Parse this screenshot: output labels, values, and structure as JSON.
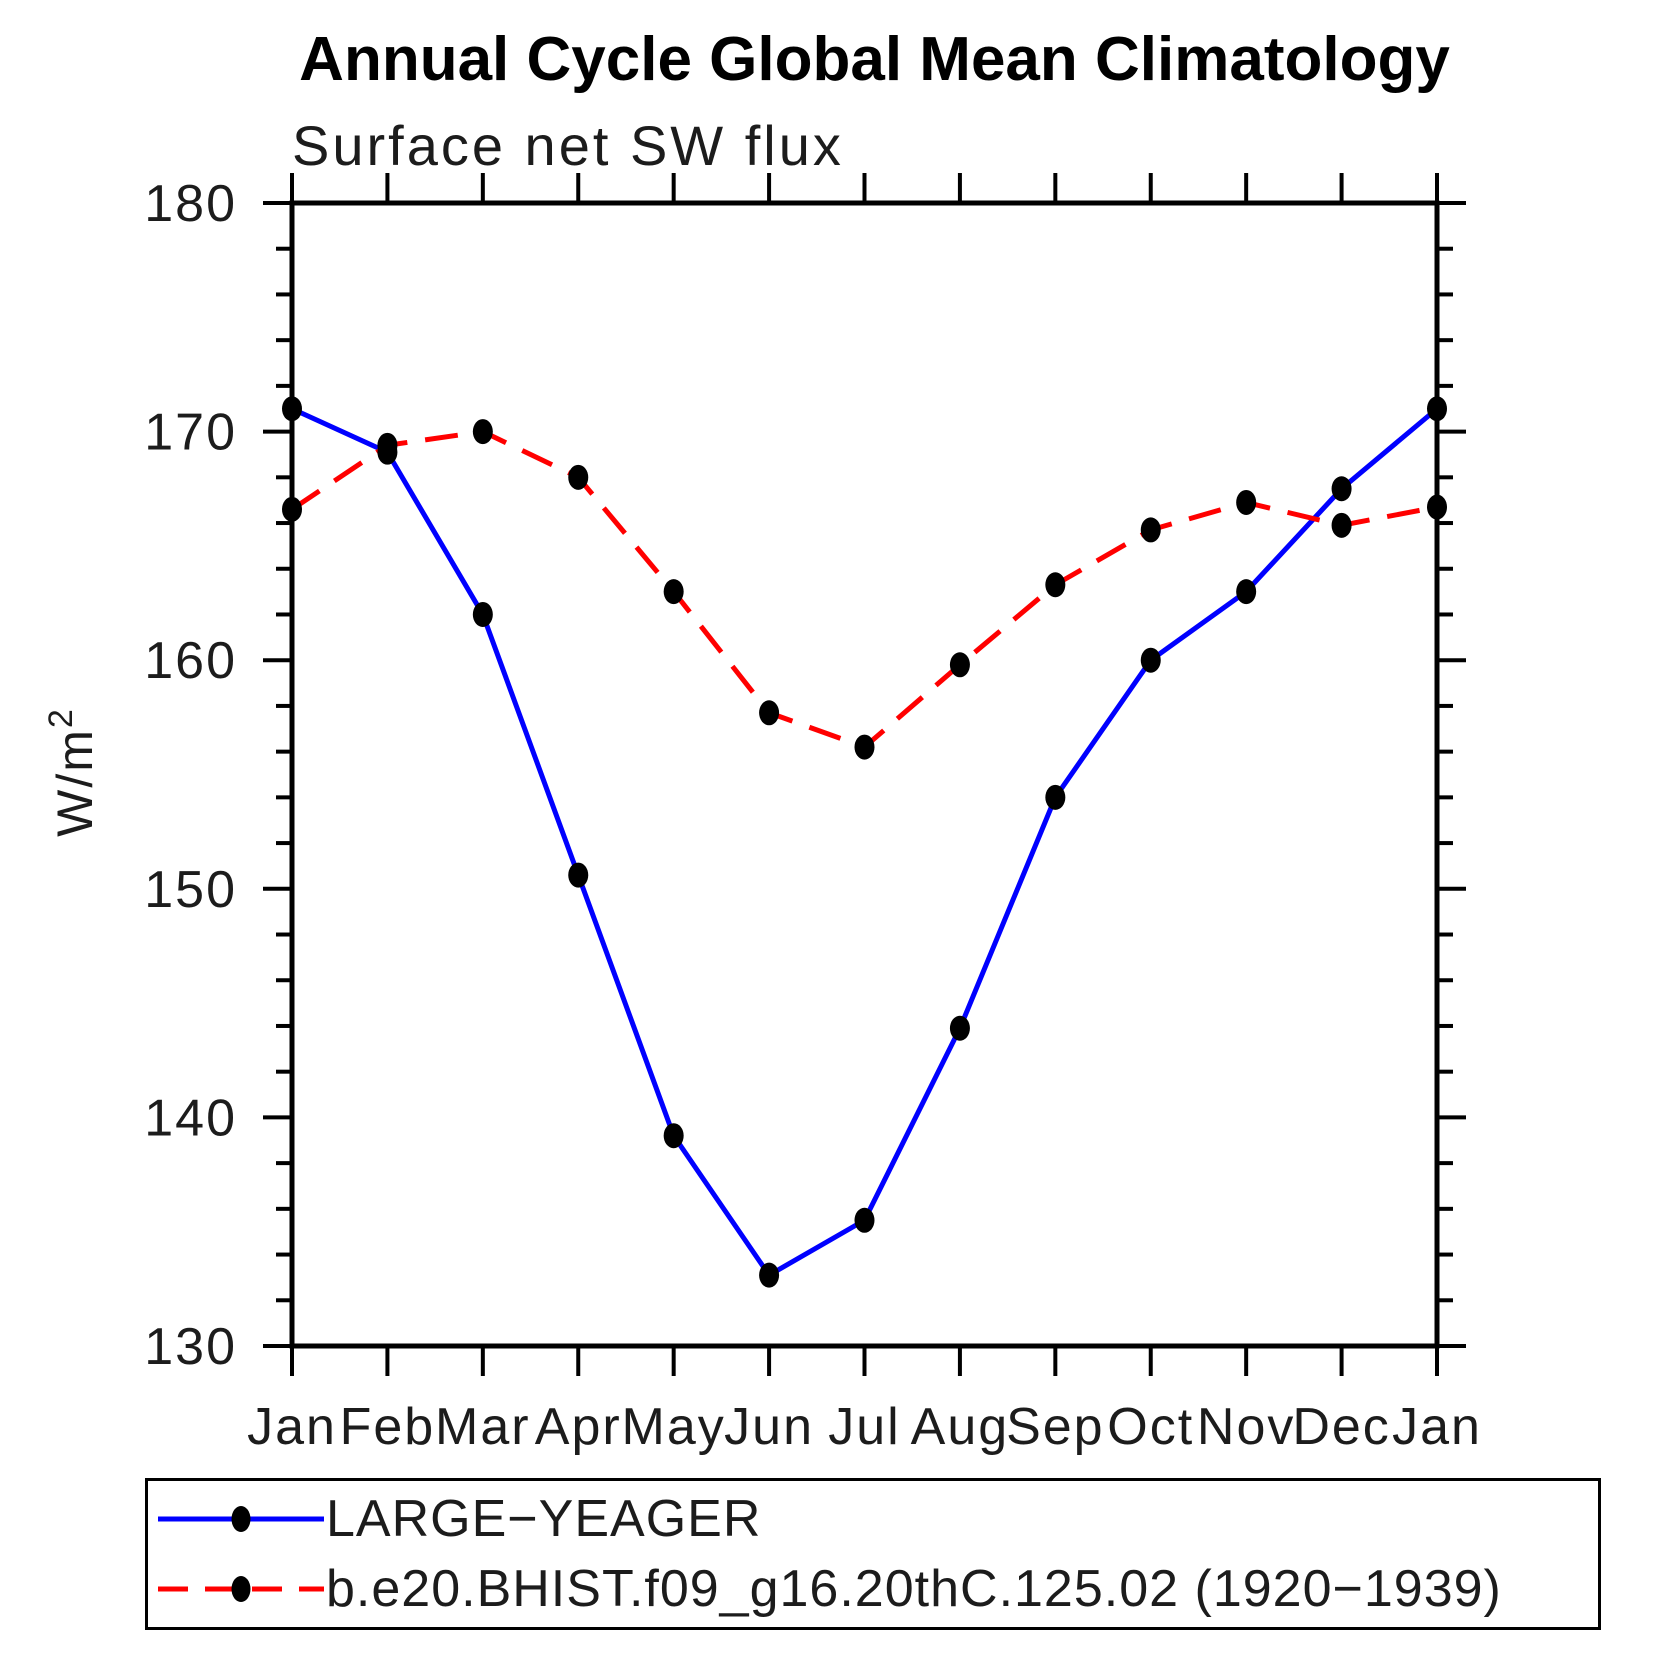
{
  "title": "Annual Cycle Global Mean Climatology",
  "subtitle": "Surface net SW flux",
  "ylabel_base": "W/m",
  "ylabel_exponent": "2",
  "colors": {
    "background": "#ffffff",
    "axis": "#000000",
    "text": "#1c1c1c",
    "marker": "#000000",
    "series1": "#0000ff",
    "series2": "#ff0000"
  },
  "chart_data": {
    "type": "line",
    "categories": [
      "Jan",
      "Feb",
      "Mar",
      "Apr",
      "May",
      "Jun",
      "Jul",
      "Aug",
      "Sep",
      "Oct",
      "Nov",
      "Dec",
      "Jan"
    ],
    "series": [
      {
        "name": "LARGE−YEAGER",
        "color": "#0000ff",
        "line_style": "solid",
        "marker": "filled-circle",
        "marker_color": "#000000",
        "values": [
          171.0,
          169.1,
          162.0,
          150.6,
          139.2,
          133.1,
          135.5,
          143.9,
          154.0,
          160.0,
          163.0,
          167.5,
          171.0
        ]
      },
      {
        "name": "b.e20.BHIST.f09_g16.20thC.125.02 (1920−1939)",
        "color": "#ff0000",
        "line_style": "dashed",
        "marker": "filled-circle",
        "marker_color": "#000000",
        "values": [
          166.6,
          169.4,
          170.0,
          168.0,
          163.0,
          157.7,
          156.2,
          159.8,
          163.3,
          165.7,
          166.9,
          165.9,
          166.7
        ]
      }
    ],
    "xlabel": "",
    "ylabel": "W/m²",
    "ylim": [
      130,
      180
    ],
    "yticks_major": [
      130,
      140,
      150,
      160,
      170,
      180
    ],
    "ytick_minor_step": 2,
    "grid": false,
    "legend_position": "bottom"
  }
}
